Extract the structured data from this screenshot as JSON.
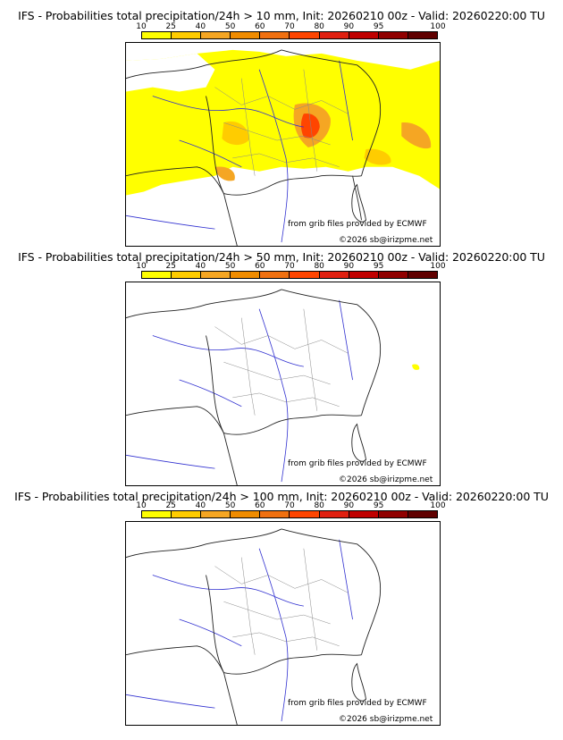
{
  "colorbar": {
    "ticks": [
      "10",
      "25",
      "40",
      "50",
      "60",
      "70",
      "80",
      "90",
      "95",
      "100"
    ],
    "colors": [
      "#ffff00",
      "#ffcc00",
      "#f5a623",
      "#f08c00",
      "#f07010",
      "#ff4500",
      "#e02010",
      "#c00000",
      "#900000",
      "#600000"
    ]
  },
  "panels": [
    {
      "title": "IFS - Probabilities total precipitation/24h > 10 mm, Init: 20260210 00z - Valid: 20260220:00 TU",
      "precip": "high"
    },
    {
      "title": "IFS - Probabilities total precipitation/24h > 50 mm, Init: 20260210 00z - Valid: 20260220:00 TU",
      "precip": "low"
    },
    {
      "title": "IFS - Probabilities total precipitation/24h > 100 mm, Init: 20260210 00z - Valid: 20260220:00 TU",
      "precip": "none"
    }
  ],
  "credits": {
    "source": "from grib files provided by ECMWF",
    "copyright": "©2026 sb@irizpme.net"
  }
}
